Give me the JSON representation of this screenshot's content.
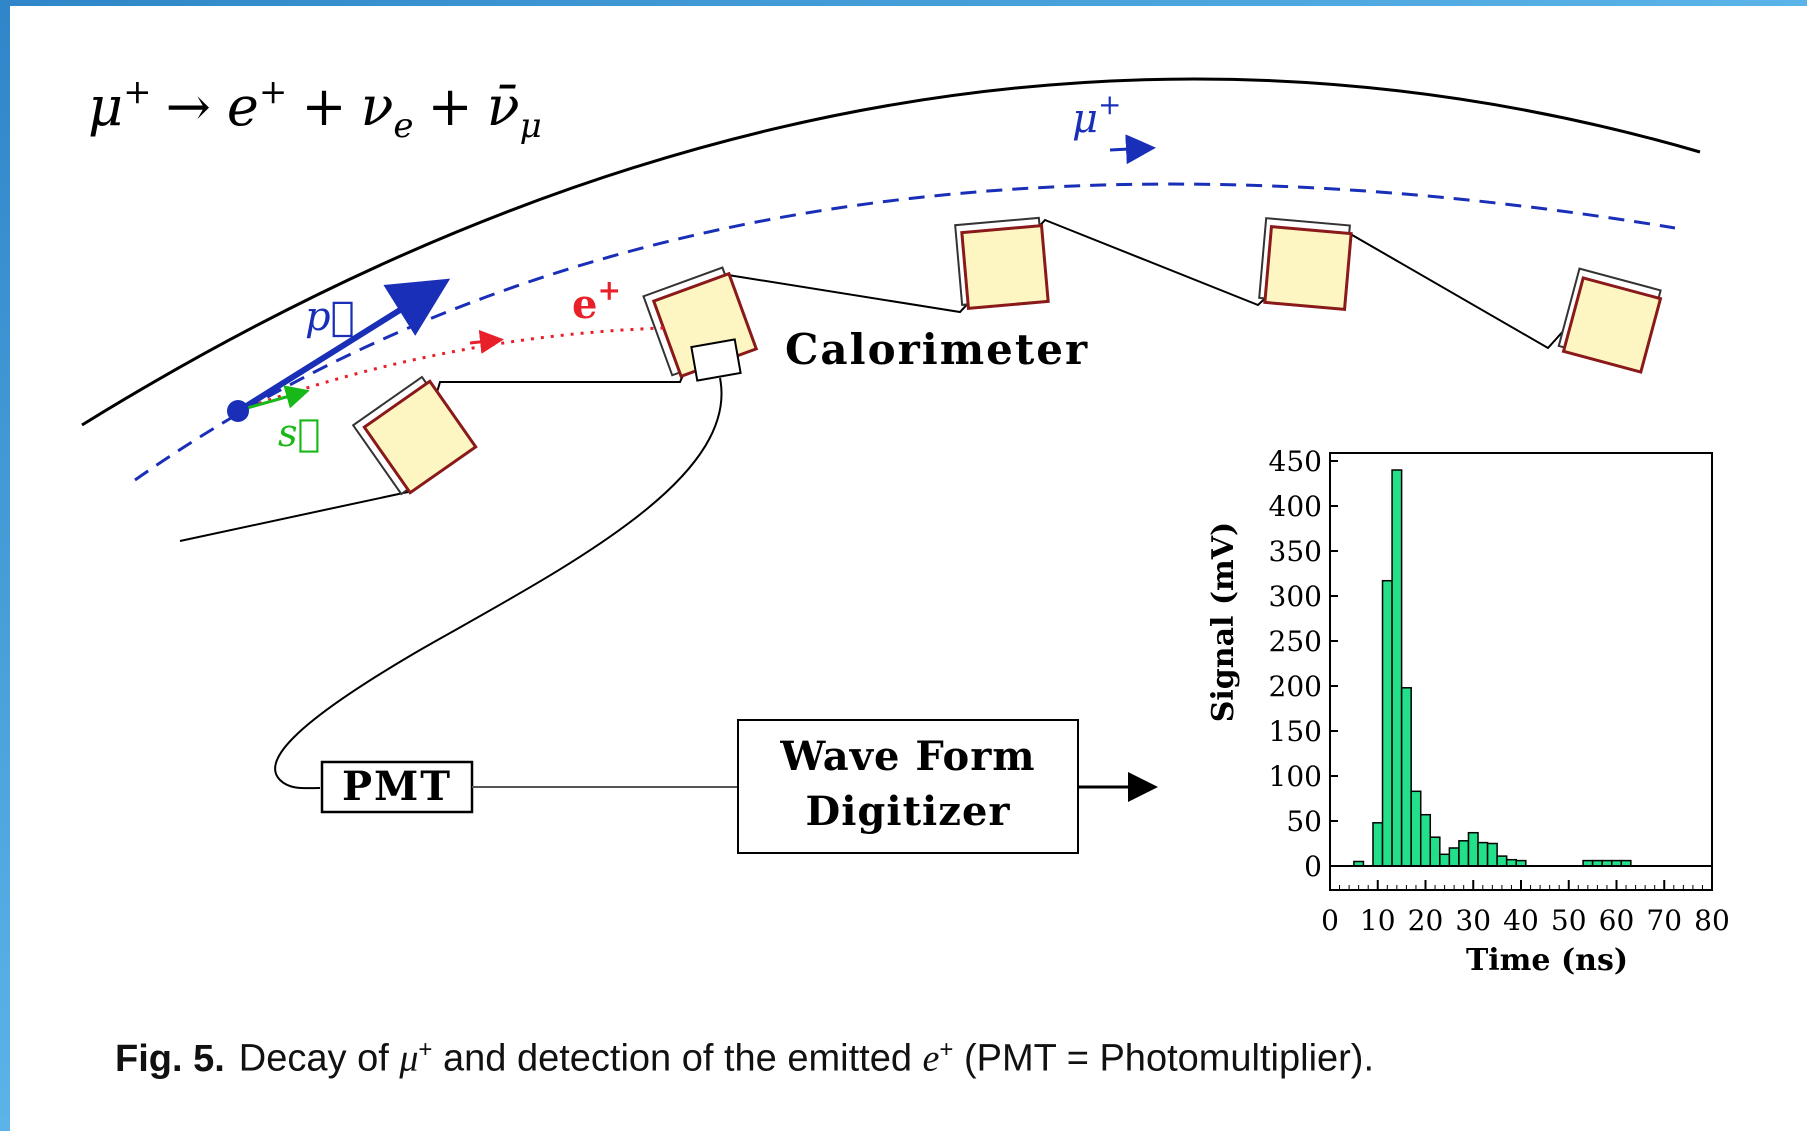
{
  "decay_equation": {
    "mu": "μ",
    "plus": "+",
    "arrow": "→",
    "e": "e",
    "nu": "ν",
    "sub_e": "e",
    "nubar": "ν̄",
    "sub_mu": "μ"
  },
  "muon_label": {
    "symbol": "μ",
    "charge": "+"
  },
  "positron_label": {
    "symbol": "e",
    "charge": "+"
  },
  "momentum_label": "p⃗",
  "spin_label": "s⃗",
  "calorimeter_label": "Calorimeter",
  "pmt_label": "PMT",
  "digitizer_label": {
    "line1": "Wave Form",
    "line2": "Digitizer"
  },
  "colors": {
    "muon_beam": "#1a2fb8",
    "positron_path": "#e8202a",
    "spin_vector": "#18b818",
    "calorimeter_fill": "#fdf6c2",
    "calorimeter_border": "#8a1a1a",
    "histogram_bar": "#22e08a"
  },
  "chart_data": {
    "type": "bar",
    "xlabel": "Time (ns)",
    "ylabel": "Signal (mV)",
    "xlim": [
      0,
      80
    ],
    "ylim": [
      0,
      450
    ],
    "xticks": [
      0,
      10,
      20,
      30,
      40,
      50,
      60,
      70,
      80
    ],
    "yticks": [
      0,
      50,
      100,
      150,
      200,
      250,
      300,
      350,
      400,
      450
    ],
    "bin_width": 2,
    "bins": [
      {
        "x": 5,
        "y": 5
      },
      {
        "x": 9,
        "y": 48
      },
      {
        "x": 11,
        "y": 317
      },
      {
        "x": 13,
        "y": 440
      },
      {
        "x": 15,
        "y": 198
      },
      {
        "x": 17,
        "y": 83
      },
      {
        "x": 19,
        "y": 57
      },
      {
        "x": 21,
        "y": 32
      },
      {
        "x": 23,
        "y": 13
      },
      {
        "x": 25,
        "y": 20
      },
      {
        "x": 27,
        "y": 28
      },
      {
        "x": 29,
        "y": 37
      },
      {
        "x": 31,
        "y": 26
      },
      {
        "x": 33,
        "y": 25
      },
      {
        "x": 35,
        "y": 11
      },
      {
        "x": 37,
        "y": 7
      },
      {
        "x": 39,
        "y": 6
      },
      {
        "x": 53,
        "y": 6
      },
      {
        "x": 55,
        "y": 6
      },
      {
        "x": 57,
        "y": 6
      },
      {
        "x": 59,
        "y": 6
      },
      {
        "x": 61,
        "y": 6
      }
    ]
  },
  "caption": {
    "fig_label": "Fig. 5.",
    "text_before_mu": "Decay of ",
    "mu_symbol": "μ",
    "mu_charge": "+",
    "text_middle": " and detection of the emitted ",
    "e_symbol": "e",
    "e_charge": "+",
    "text_after": " (PMT = Photomultiplier)."
  }
}
